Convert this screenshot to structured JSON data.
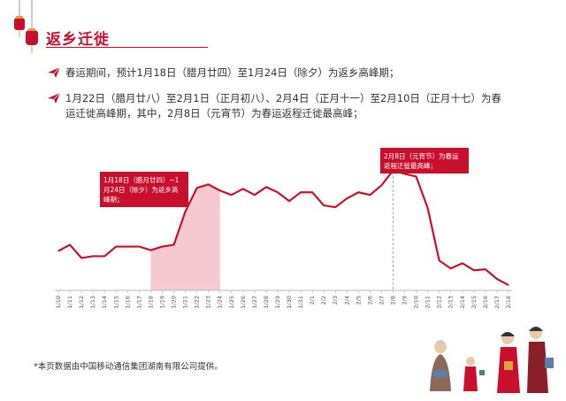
{
  "header": {
    "title": "返乡迁徙"
  },
  "bullets": [
    {
      "text": "春运期间，预计1月18日（腊月廿四）至1月24日（除夕）为返乡高峰期；"
    },
    {
      "line1": "1月22日（腊月廿八）至2月1日（正月初八）、2月4日（正月十一）至2月10日（正月十七）为春",
      "line2": "运迁徙高峰期，其中，2月8日（元宵节）为春运返程迁徙最高峰；"
    }
  ],
  "footer": {
    "source": "*本页数据由中国移动通信集团湖南有限公司提供。"
  },
  "colors": {
    "accent": "#c8102e",
    "shade": "#f5c9cf",
    "axis": "#bbbbbb"
  },
  "chart_data": {
    "type": "line",
    "categories": [
      "1/10",
      "1/11",
      "1/12",
      "1/13",
      "1/14",
      "1/15",
      "1/16",
      "1/17",
      "1/18",
      "1/19",
      "1/20",
      "1/21",
      "1/22",
      "1/23",
      "1/24",
      "1/25",
      "1/26",
      "1/27",
      "1/28",
      "1/29",
      "1/30",
      "1/31",
      "2/1",
      "2/2",
      "2/3",
      "2/4",
      "2/5",
      "2/6",
      "2/7",
      "2/8",
      "2/9",
      "2/10",
      "2/11",
      "2/12",
      "2/13",
      "2/14",
      "2/15",
      "2/16",
      "2/17",
      "2/18"
    ],
    "series": [
      {
        "values": [
          45,
          52,
          37,
          39,
          39,
          50,
          50,
          50,
          46,
          50,
          52,
          90,
          117,
          121,
          114,
          109,
          116,
          109,
          118,
          112,
          102,
          112,
          112,
          97,
          95,
          105,
          112,
          109,
          120,
          137,
          133,
          130,
          94,
          34,
          25,
          31,
          23,
          24,
          13,
          6
        ]
      }
    ],
    "ylim": [
      0,
      180
    ],
    "highlight_range": [
      "1/18",
      "1/24"
    ],
    "marker": "2/8",
    "annotations": [
      {
        "text": "1月18日（腊月廿四）~1月24日（除夕）为返乡高峰期；",
        "line1": "1月18日（腊月廿四）~1",
        "line2": "月24日（除夕）为返乡高",
        "line3": "峰期；"
      },
      {
        "text": "2月8日（元宵节）为春运返程迁徙最高峰；",
        "line1": "2月8日（元宵节）为春运",
        "line2": "返程迁徙最高峰；"
      }
    ],
    "grid": false
  }
}
